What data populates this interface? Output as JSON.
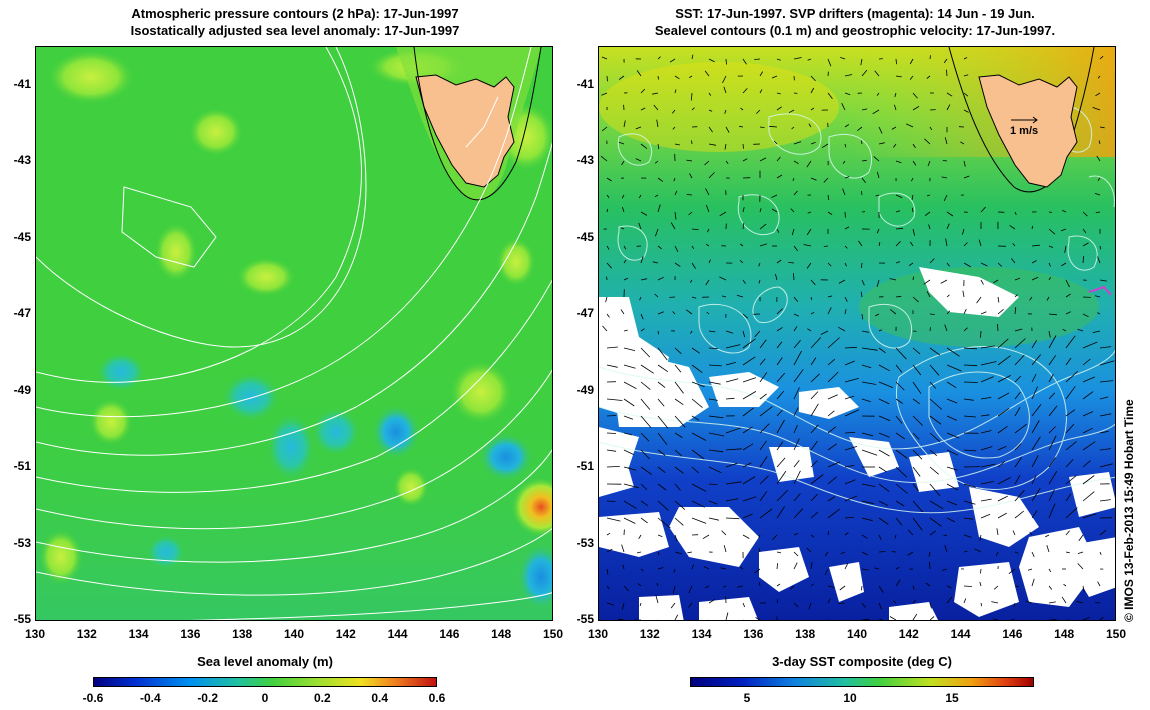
{
  "left": {
    "title_line1": "Atmospheric pressure contours (2 hPa): 17-Jun-1997",
    "title_line2": "Isostatically adjusted sea level anomaly: 17-Jun-1997",
    "colorbar": {
      "title": "Sea level anomaly (m)",
      "ticks": [
        "-0.6",
        "-0.4",
        "-0.2",
        "0",
        "0.2",
        "0.4",
        "0.6"
      ]
    }
  },
  "right": {
    "title_line1": "SST: 17-Jun-1997. SVP drifters (magenta): 14 Jun - 19 Jun.",
    "title_line2": "Sealevel contours (0.1 m) and geostrophic velocity: 17-Jun-1997.",
    "velocity_label": "1 m/s",
    "colorbar": {
      "title": "3-day SST composite (deg C)",
      "ticks": [
        "5",
        "10",
        "15"
      ]
    }
  },
  "axes": {
    "x_ticks": [
      "130",
      "132",
      "134",
      "136",
      "138",
      "140",
      "142",
      "144",
      "146",
      "148",
      "150"
    ],
    "y_ticks": [
      "-41",
      "-43",
      "-45",
      "-47",
      "-49",
      "-51",
      "-53",
      "-55"
    ]
  },
  "credit": "© IMOS 13-Feb-2013 15:49 Hobart Time",
  "colors": {
    "land": "#f9c08f",
    "ssa_base": "#3fcf3f",
    "cloud": "#ffffff"
  }
}
